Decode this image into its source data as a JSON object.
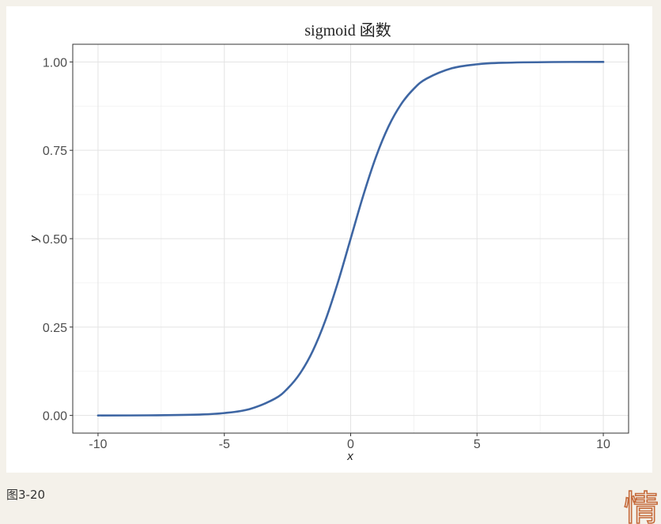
{
  "chart_data": {
    "type": "line",
    "title": "sigmoid 函数",
    "xlabel": "x",
    "ylabel": "y",
    "xlim": [
      -11,
      11
    ],
    "ylim": [
      -0.05,
      1.05
    ],
    "x_ticks": [
      -10,
      -5,
      0,
      5,
      10
    ],
    "x_tick_labels": [
      "-10",
      "-5",
      "0",
      "5",
      "10"
    ],
    "y_ticks": [
      0,
      0.25,
      0.5,
      0.75,
      1.0
    ],
    "y_tick_labels": [
      "0.00",
      "0.25",
      "0.50",
      "0.75",
      "1.00"
    ],
    "x_minor_grid": [
      -7.5,
      -2.5,
      2.5,
      7.5
    ],
    "y_minor_grid": [
      0.125,
      0.375,
      0.625,
      0.875
    ],
    "grid": true,
    "series": [
      {
        "name": "sigmoid",
        "function": "y = 1 / (1 + e^(-x))",
        "x": [
          -10,
          -8,
          -6,
          -5,
          -4,
          -3,
          -2.5,
          -2,
          -1.5,
          -1,
          -0.5,
          0,
          0.5,
          1,
          1.5,
          2,
          2.5,
          3,
          4,
          5,
          6,
          8,
          10
        ],
        "y": [
          0.0,
          0.0003,
          0.0025,
          0.0067,
          0.018,
          0.0474,
          0.0759,
          0.1192,
          0.1824,
          0.2689,
          0.3775,
          0.5,
          0.6225,
          0.7311,
          0.8176,
          0.8808,
          0.9241,
          0.9526,
          0.982,
          0.9933,
          0.9975,
          0.9997,
          1.0
        ],
        "color": "#3e66a3"
      }
    ]
  },
  "caption": "图3-20",
  "watermark_text": "情"
}
